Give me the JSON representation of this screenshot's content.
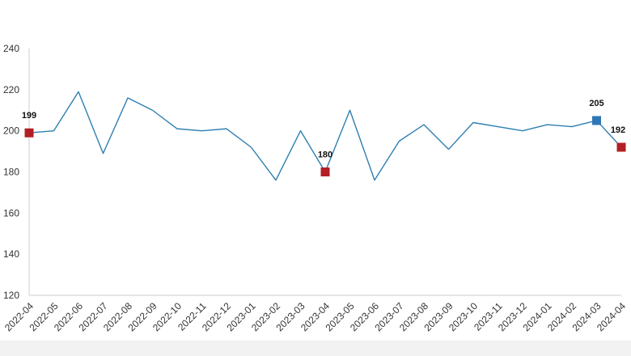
{
  "chart_data": {
    "type": "line",
    "title": "",
    "xlabel": "",
    "ylabel": "",
    "ylim": [
      120,
      240
    ],
    "yticks": [
      120,
      140,
      160,
      180,
      200,
      220,
      240
    ],
    "grid": false,
    "legend": "none",
    "categories": [
      "2022-04",
      "2022-05",
      "2022-06",
      "2022-07",
      "2022-08",
      "2022-09",
      "2022-10",
      "2022-11",
      "2022-12",
      "2023-01",
      "2023-02",
      "2023-03",
      "2023-04",
      "2023-05",
      "2023-06",
      "2023-07",
      "2023-08",
      "2023-09",
      "2023-10",
      "2023-11",
      "2023-12",
      "2024-01",
      "2024-02",
      "2024-03",
      "2024-04"
    ],
    "series": [
      {
        "values": [
          199,
          200,
          219,
          189,
          216,
          210,
          201,
          200,
          201,
          192,
          176,
          200,
          180,
          210,
          176,
          195,
          203,
          191,
          204,
          202,
          200,
          203,
          202,
          205,
          192
        ],
        "color": "#2e7fb0"
      }
    ],
    "markers": [
      {
        "index": 0,
        "value": 199,
        "label": "199",
        "color": "#b21f24"
      },
      {
        "index": 12,
        "value": 180,
        "label": "180",
        "color": "#b21f24"
      },
      {
        "index": 23,
        "value": 205,
        "label": "205",
        "color": "#2f77b5"
      },
      {
        "index": 24,
        "value": 192,
        "label": "192",
        "color": "#b21f24"
      }
    ],
    "axis_color": "#cccccc"
  }
}
